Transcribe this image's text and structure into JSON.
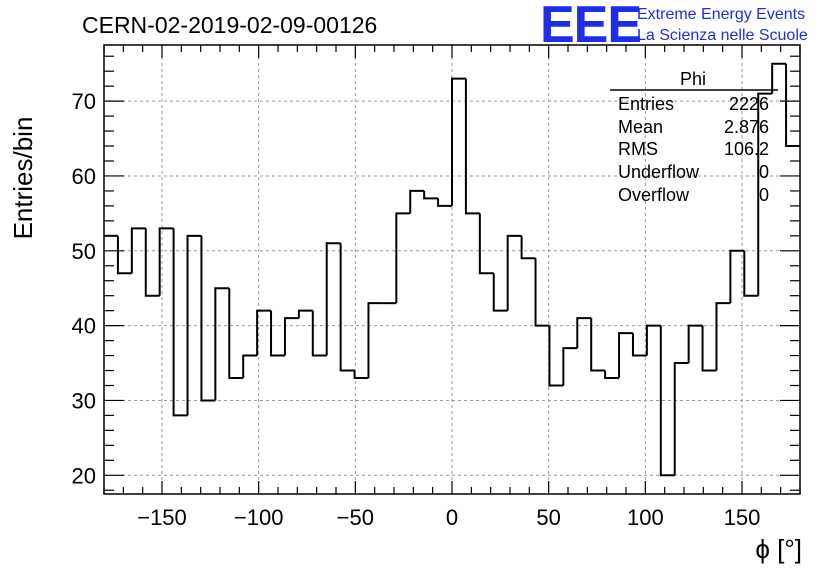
{
  "header": {
    "run_title": "CERN-02-2019-02-09-00126",
    "logo_mark": "EEE",
    "logo_line1": "Extreme Energy Events",
    "logo_line2": "La Scienza nelle Scuole",
    "logo_color": "#1e2ee8"
  },
  "stats_box": {
    "title": "Phi",
    "rows": [
      {
        "label": "Entries",
        "value": "2226"
      },
      {
        "label": "Mean",
        "value": "2.876"
      },
      {
        "label": "RMS",
        "value": "106.2"
      },
      {
        "label": "Underflow",
        "value": "0"
      },
      {
        "label": "Overflow",
        "value": "0"
      }
    ]
  },
  "chart_data": {
    "type": "histogram",
    "title": "CERN-02-2019-02-09-00126",
    "xlabel": "ϕ [°]",
    "ylabel": "Entries/bin",
    "xlim": [
      -180,
      180
    ],
    "ylim": [
      17.5,
      77.5
    ],
    "bin_width": 7.2,
    "x_ticks": [
      -150,
      -100,
      -50,
      0,
      50,
      100,
      150
    ],
    "x_tick_labels": [
      "−150",
      "−100",
      "−50",
      "0",
      "50",
      "100",
      "150"
    ],
    "y_ticks": [
      20,
      30,
      40,
      50,
      60,
      70
    ],
    "y_tick_labels": [
      "20",
      "30",
      "40",
      "50",
      "60",
      "70"
    ],
    "grid": true,
    "line_color": "#000000",
    "bin_edges_start": -180,
    "values": [
      52,
      47,
      53,
      44,
      53,
      28,
      52,
      30,
      45,
      33,
      36,
      42,
      36,
      41,
      42,
      36,
      51,
      34,
      33,
      43,
      43,
      55,
      58,
      57,
      56,
      73,
      55,
      47,
      42,
      52,
      49,
      40,
      32,
      37,
      41,
      34,
      33,
      39,
      36,
      40,
      20,
      35,
      40,
      34,
      43,
      50,
      44,
      71,
      75,
      64
    ]
  }
}
